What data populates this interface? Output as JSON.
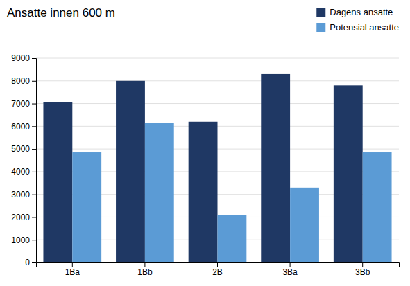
{
  "chart_data": {
    "type": "bar",
    "title": "Ansatte innen 600 m",
    "categories": [
      "1Ba",
      "1Bb",
      "2B",
      "3Ba",
      "3Bb"
    ],
    "series": [
      {
        "name": "Dagens ansatte",
        "color": "#1F3864",
        "values": [
          7050,
          8000,
          6200,
          8300,
          7800
        ]
      },
      {
        "name": "Potensial ansatte",
        "color": "#5B9BD5",
        "values": [
          4850,
          6150,
          2100,
          3300,
          4850
        ]
      }
    ],
    "ylim": [
      0,
      9000
    ],
    "yticks": [
      0,
      1000,
      2000,
      3000,
      4000,
      5000,
      6000,
      7000,
      8000,
      9000
    ],
    "grid": true,
    "legend": "upper right"
  }
}
